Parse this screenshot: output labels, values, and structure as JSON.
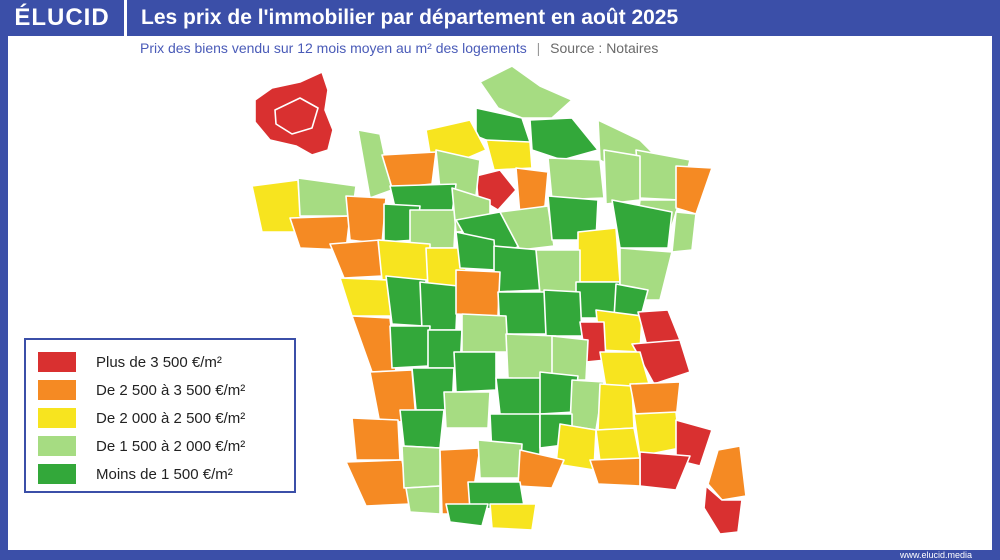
{
  "header": {
    "logo": "ÉLUCID",
    "title": "Les prix de l'immobilier par département en août 2025"
  },
  "subtitle": {
    "text": "Prix des biens vendu sur 12 mois moyen au m² des logements",
    "separator": "|",
    "source": "Source : Notaires"
  },
  "legend": {
    "items": [
      {
        "label": "Plus de 3 500 €/m²",
        "color": "#d93030"
      },
      {
        "label": "De 2 500 à 3 500 €/m²",
        "color": "#f58a23"
      },
      {
        "label": "De 2 000 à 2 500 €/m²",
        "color": "#f7e41f"
      },
      {
        "label": "De 1 500 à 2 000 €/m²",
        "color": "#a6dc82"
      },
      {
        "label": "Moins de 1 500 €/m²",
        "color": "#33a83a"
      }
    ]
  },
  "footer": {
    "url": "www.elucid.media"
  },
  "colors": {
    "brand": "#3b4fa8",
    "red": "#d93030",
    "orange": "#f58a23",
    "yellow": "#f7e41f",
    "lightgreen": "#a6dc82",
    "green": "#33a83a"
  }
}
